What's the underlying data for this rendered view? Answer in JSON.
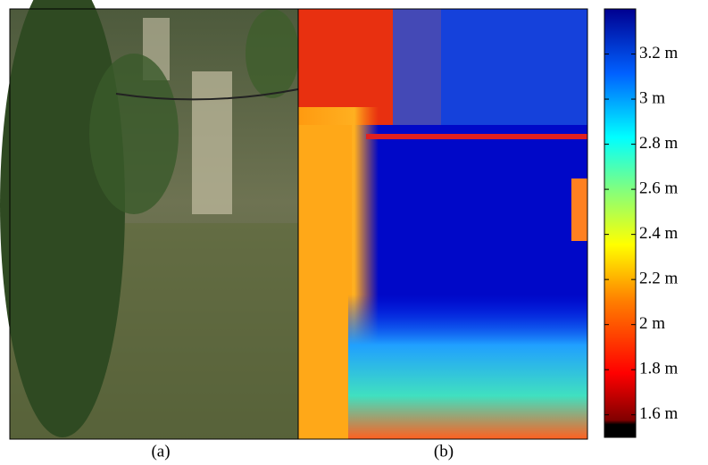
{
  "panels": [
    {
      "label": "(a)"
    },
    {
      "label": "(b)"
    }
  ],
  "colorbar": {
    "lim": [
      1.5,
      3.4
    ],
    "ticks": [
      {
        "value": 1.6,
        "label": "1.6 m"
      },
      {
        "value": 1.8,
        "label": "1.8 m"
      },
      {
        "value": 2,
        "label": "2 m"
      },
      {
        "value": 2.2,
        "label": "2.2 m"
      },
      {
        "value": 2.4,
        "label": "2.4 m"
      },
      {
        "value": 2.6,
        "label": "2.6 m"
      },
      {
        "value": 2.8,
        "label": "2.8 m"
      },
      {
        "value": 3,
        "label": "3 m"
      },
      {
        "value": 3.2,
        "label": "3.2 m"
      }
    ]
  }
}
